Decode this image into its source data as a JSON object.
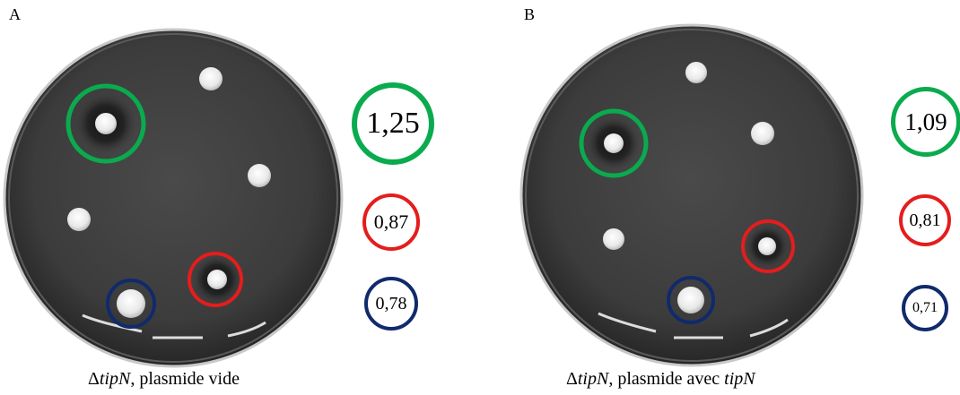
{
  "panels": [
    {
      "letter": "A",
      "caption": {
        "prefix": "Δ",
        "gene": "tipN",
        "suffix": ", plasmide vide"
      },
      "values": [
        {
          "text": "1,25",
          "color": "#0aab4e"
        },
        {
          "text": "0,87",
          "color": "#e41d1d"
        },
        {
          "text": "0,78",
          "color": "#102a6b"
        }
      ]
    },
    {
      "letter": "B",
      "caption": {
        "prefix": "Δ",
        "gene": "tipN",
        "suffix": ", plasmide avec ",
        "gene2": "tipN"
      },
      "values": [
        {
          "text": "1,09",
          "color": "#0aab4e"
        },
        {
          "text": "0,81",
          "color": "#e41d1d"
        },
        {
          "text": "0,71",
          "color": "#102a6b"
        }
      ]
    }
  ],
  "colors": {
    "plate": "#3a3a3a",
    "plate_rim": "#b9b9b9",
    "colony": "#f2f2f2"
  }
}
